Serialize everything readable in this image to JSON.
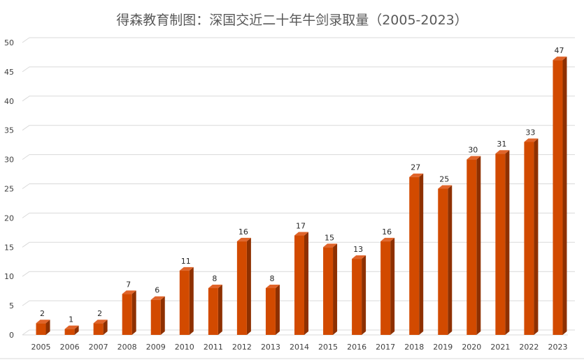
{
  "chart_data": {
    "type": "bar",
    "title": "得森教育制图：深国交近二十年牛剑录取量（2005-2023）",
    "categories": [
      "2005",
      "2006",
      "2007",
      "2008",
      "2009",
      "2010",
      "2011",
      "2012",
      "2013",
      "2014",
      "2015",
      "2016",
      "2017",
      "2018",
      "2019",
      "2020",
      "2021",
      "2022",
      "2023"
    ],
    "values": [
      2,
      1,
      2,
      7,
      6,
      11,
      8,
      16,
      8,
      17,
      15,
      13,
      16,
      27,
      25,
      30,
      31,
      33,
      47
    ],
    "ylim": [
      0,
      50
    ],
    "yticks": [
      0,
      5,
      10,
      15,
      20,
      25,
      30,
      35,
      40,
      45,
      50
    ],
    "grid": true,
    "legend": "none",
    "bar_color": "#D24A00",
    "bar_top_color": "#E0642A",
    "bar_side_color": "#8E3000"
  }
}
